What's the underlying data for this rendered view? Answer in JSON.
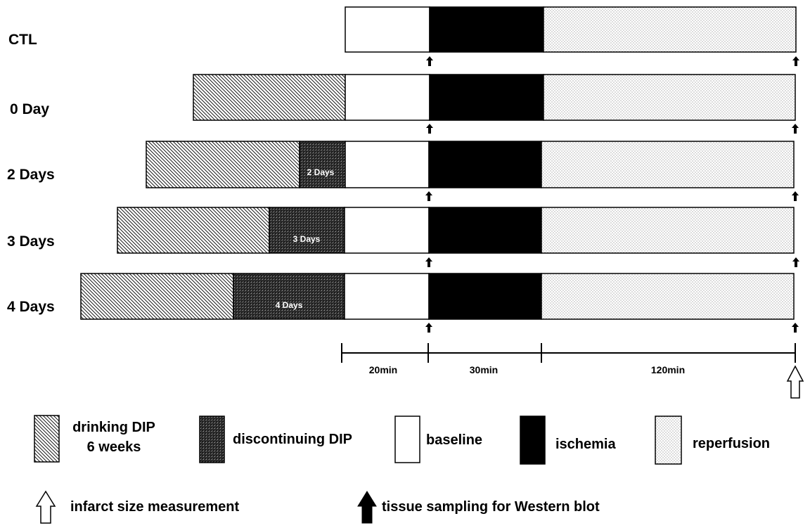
{
  "rows": [
    {
      "label": "CTL",
      "discontinue_text": ""
    },
    {
      "label": "0 Day",
      "discontinue_text": ""
    },
    {
      "label": "2 Days",
      "discontinue_text": "2 Days"
    },
    {
      "label": "3 Days",
      "discontinue_text": "3 Days"
    },
    {
      "label": "4 Days",
      "discontinue_text": "4 Days"
    }
  ],
  "timeline": {
    "segments": [
      "20min",
      "30min",
      "120min"
    ]
  },
  "legend": {
    "drinking_line1": "drinking DIP",
    "drinking_line2": "6 weeks",
    "discontinuing": "discontinuing DIP",
    "baseline": "baseline",
    "ischemia": "ischemia",
    "reperfusion": "reperfusion",
    "infarct": "infarct size measurement",
    "tissue": "tissue sampling for Western blot"
  },
  "colors": {
    "ischemia": "#000000",
    "baseline": "#ffffff",
    "outline": "#000000"
  }
}
